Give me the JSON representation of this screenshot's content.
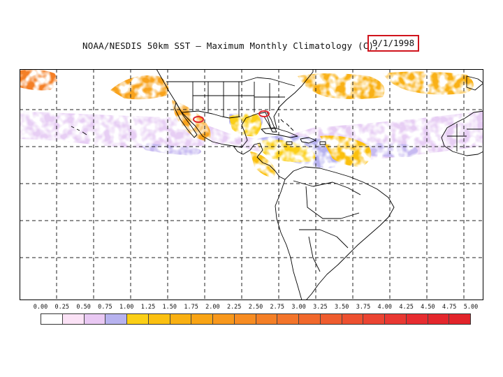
{
  "title": "NOAA/NESDIS 50km SST – Maximum Monthly Climatology (C),",
  "date": "9/1/1998",
  "colors": {
    "date_box_border": "#d0141c",
    "anomaly_marker": "#e0262e",
    "grid_line": "#222222",
    "land_outline": "#000000"
  },
  "map": {
    "projection": "equirectangular",
    "grid": "dashed",
    "markers": [
      "anomaly-marker-gulf-of-mexico",
      "anomaly-marker-gulf-of-california"
    ]
  },
  "scale": {
    "ticks": [
      "0.00",
      "0.25",
      "0.50",
      "0.75",
      "1.00",
      "1.25",
      "1.50",
      "1.75",
      "2.00",
      "2.25",
      "2.50",
      "2.75",
      "3.00",
      "3.25",
      "3.50",
      "3.75",
      "4.00",
      "4.25",
      "4.50",
      "4.75",
      "5.00"
    ],
    "colors": [
      "#ffffff",
      "#fbe2f6",
      "#e9c8f3",
      "#b7b2ef",
      "#fbcf16",
      "#fbc010",
      "#f9b012",
      "#f9a414",
      "#f8981c",
      "#f78c22",
      "#f47f26",
      "#f3742a",
      "#f1682c",
      "#ef5c2e",
      "#ed5030",
      "#eb4432",
      "#e93832",
      "#e72c30",
      "#e4262c",
      "#e2242a"
    ]
  }
}
